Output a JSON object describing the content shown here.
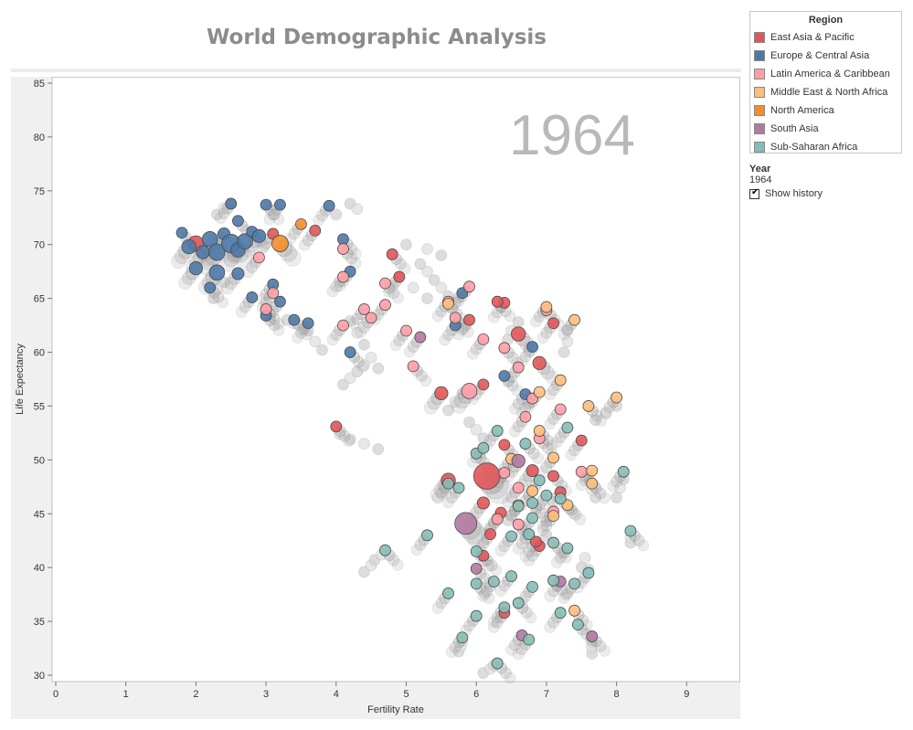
{
  "page": {
    "title": "World Demographic Analysis",
    "year_label": "Year",
    "year_value": "1964",
    "show_history_label": "Show history",
    "show_history_checked": true
  },
  "legend": {
    "title": "Region",
    "items": [
      {
        "label": "East Asia & Pacific",
        "color": "#e15759"
      },
      {
        "label": "Europe & Central Asia",
        "color": "#4e79a7"
      },
      {
        "label": "Latin America & Caribbean",
        "color": "#ff9da7"
      },
      {
        "label": "Middle East & North Africa",
        "color": "#ffbe7d"
      },
      {
        "label": "North America",
        "color": "#f28e2b"
      },
      {
        "label": "South Asia",
        "color": "#b07aa1"
      },
      {
        "label": "Sub-Saharan Africa",
        "color": "#86bcb6"
      }
    ]
  },
  "chart_data": {
    "type": "scatter",
    "title": "World Demographic Analysis",
    "xlabel": "Fertility Rate",
    "ylabel": "Life Expectancy",
    "xlim": [
      0,
      10
    ],
    "ylim": [
      30,
      85
    ],
    "xticks": [
      0,
      1,
      2,
      3,
      4,
      5,
      6,
      7,
      8,
      9
    ],
    "yticks": [
      30,
      35,
      40,
      45,
      50,
      55,
      60,
      65,
      70,
      75,
      80,
      85
    ],
    "year_watermark": "1964",
    "history_shown": true,
    "grid": false,
    "legend_placement": "right",
    "series": [
      {
        "name": "East Asia & Pacific",
        "color": "#e15759",
        "points": [
          [
            2.0,
            70.1,
            1.4
          ],
          [
            3.1,
            71.0,
            1.0
          ],
          [
            3.7,
            71.3,
            1.0
          ],
          [
            4.8,
            69.1,
            1.0
          ],
          [
            4.9,
            67.0,
            1.0
          ],
          [
            5.6,
            48.1,
            1.3
          ],
          [
            6.15,
            48.5,
            2.4
          ],
          [
            6.1,
            46.0,
            1.1
          ],
          [
            6.35,
            45.1,
            1.0
          ],
          [
            6.4,
            51.4,
            1.0
          ],
          [
            5.9,
            63.0,
            1.0
          ],
          [
            6.4,
            64.6,
            1.0
          ],
          [
            6.6,
            61.7,
            1.3
          ],
          [
            5.5,
            56.2,
            1.2
          ],
          [
            6.1,
            57.0,
            1.0
          ],
          [
            6.9,
            59.0,
            1.2
          ],
          [
            7.1,
            62.7,
            1.0
          ],
          [
            6.8,
            49.0,
            1.1
          ],
          [
            7.1,
            48.5,
            1.0
          ],
          [
            7.5,
            51.8,
            1.0
          ],
          [
            6.2,
            43.1,
            1.0
          ],
          [
            6.1,
            41.1,
            1.0
          ],
          [
            6.4,
            35.8,
            1.0
          ],
          [
            6.9,
            42.0,
            1.0
          ],
          [
            4.0,
            53.1,
            1.0
          ],
          [
            7.2,
            47.0,
            1.0
          ],
          [
            6.85,
            42.4,
            1.0
          ],
          [
            6.3,
            64.7,
            1.0
          ]
        ]
      },
      {
        "name": "Europe & Central Asia",
        "color": "#4e79a7",
        "points": [
          [
            1.8,
            71.1,
            1.0
          ],
          [
            1.9,
            69.8,
            1.3
          ],
          [
            2.1,
            69.3,
            1.2
          ],
          [
            2.2,
            70.5,
            1.4
          ],
          [
            2.3,
            69.3,
            1.5
          ],
          [
            2.4,
            71.0,
            1.1
          ],
          [
            2.5,
            70.1,
            1.7
          ],
          [
            2.6,
            69.5,
            1.3
          ],
          [
            2.7,
            70.3,
            1.4
          ],
          [
            2.8,
            71.2,
            1.0
          ],
          [
            2.9,
            70.8,
            1.2
          ],
          [
            3.2,
            73.7,
            1.0
          ],
          [
            3.0,
            73.7,
            1.0
          ],
          [
            2.5,
            73.8,
            1.0
          ],
          [
            3.9,
            73.6,
            1.0
          ],
          [
            4.1,
            70.5,
            1.0
          ],
          [
            2.0,
            67.8,
            1.2
          ],
          [
            2.3,
            67.4,
            1.4
          ],
          [
            2.2,
            66.0,
            1.0
          ],
          [
            2.6,
            67.3,
            1.1
          ],
          [
            2.8,
            65.1,
            1.0
          ],
          [
            3.0,
            63.4,
            1.0
          ],
          [
            3.1,
            66.3,
            1.0
          ],
          [
            3.2,
            64.7,
            1.0
          ],
          [
            3.4,
            63.0,
            1.0
          ],
          [
            3.6,
            62.7,
            1.0
          ],
          [
            4.2,
            67.5,
            1.0
          ],
          [
            4.2,
            60.0,
            1.0
          ],
          [
            5.7,
            62.5,
            1.0
          ],
          [
            5.8,
            65.5,
            1.0
          ],
          [
            6.4,
            57.8,
            1.0
          ],
          [
            6.7,
            56.1,
            1.0
          ],
          [
            6.8,
            60.5,
            1.0
          ],
          [
            2.6,
            72.2,
            1.0
          ]
        ]
      },
      {
        "name": "Latin America & Caribbean",
        "color": "#ff9da7",
        "points": [
          [
            4.1,
            69.6,
            1.0
          ],
          [
            4.1,
            67.0,
            1.0
          ],
          [
            3.1,
            65.5,
            1.0
          ],
          [
            3.0,
            64.0,
            1.0
          ],
          [
            4.4,
            64.0,
            1.0
          ],
          [
            4.5,
            63.2,
            1.0
          ],
          [
            4.7,
            66.4,
            1.0
          ],
          [
            4.7,
            64.4,
            1.0
          ],
          [
            4.1,
            62.5,
            1.0
          ],
          [
            5.1,
            58.7,
            1.0
          ],
          [
            5.9,
            56.4,
            1.4
          ],
          [
            5.6,
            64.7,
            1.0
          ],
          [
            5.7,
            63.2,
            1.0
          ],
          [
            5.9,
            66.1,
            1.0
          ],
          [
            6.1,
            61.2,
            1.0
          ],
          [
            6.4,
            60.4,
            1.0
          ],
          [
            6.6,
            58.6,
            1.0
          ],
          [
            6.8,
            55.7,
            1.0
          ],
          [
            7.0,
            63.9,
            1.0
          ],
          [
            7.2,
            54.7,
            1.0
          ],
          [
            6.7,
            54.0,
            1.0
          ],
          [
            6.9,
            52.0,
            1.0
          ],
          [
            6.4,
            48.8,
            1.0
          ],
          [
            6.6,
            47.4,
            1.0
          ],
          [
            6.6,
            44.0,
            1.0
          ],
          [
            6.3,
            44.5,
            1.0
          ],
          [
            7.1,
            45.2,
            1.0
          ],
          [
            7.5,
            48.9,
            1.0
          ],
          [
            2.9,
            68.8,
            1.0
          ],
          [
            5.0,
            62.0,
            1.0
          ]
        ]
      },
      {
        "name": "Middle East & North Africa",
        "color": "#ffbe7d",
        "points": [
          [
            5.6,
            64.5,
            1.0
          ],
          [
            7.0,
            64.2,
            1.0
          ],
          [
            7.4,
            63.0,
            1.0
          ],
          [
            7.6,
            55.0,
            1.0
          ],
          [
            8.0,
            55.8,
            1.0
          ],
          [
            7.2,
            57.4,
            1.0
          ],
          [
            6.9,
            52.7,
            1.0
          ],
          [
            6.8,
            47.1,
            1.0
          ],
          [
            7.1,
            44.8,
            1.0
          ],
          [
            7.3,
            45.8,
            1.0
          ],
          [
            7.1,
            50.2,
            1.0
          ],
          [
            7.65,
            49.0,
            1.0
          ],
          [
            7.65,
            47.8,
            1.0
          ],
          [
            6.5,
            50.1,
            1.0
          ],
          [
            6.6,
            45.8,
            1.0
          ],
          [
            7.4,
            36.0,
            1.0
          ],
          [
            6.9,
            56.3,
            1.0
          ]
        ]
      },
      {
        "name": "North America",
        "color": "#f28e2b",
        "points": [
          [
            3.2,
            70.1,
            1.5
          ],
          [
            3.5,
            71.9,
            1.0
          ]
        ]
      },
      {
        "name": "South Asia",
        "color": "#b07aa1",
        "points": [
          [
            5.85,
            44.1,
            2.0
          ],
          [
            6.6,
            49.9,
            1.2
          ],
          [
            5.2,
            61.4,
            1.0
          ],
          [
            6.0,
            39.9,
            1.0
          ],
          [
            7.2,
            38.7,
            1.0
          ],
          [
            6.65,
            33.7,
            1.0
          ],
          [
            7.65,
            33.6,
            1.0
          ]
        ]
      },
      {
        "name": "Sub-Saharan Africa",
        "color": "#86bcb6",
        "points": [
          [
            4.7,
            41.6,
            1.0
          ],
          [
            5.3,
            43.0,
            1.0
          ],
          [
            5.75,
            47.4,
            1.0
          ],
          [
            6.0,
            50.6,
            1.0
          ],
          [
            6.1,
            51.1,
            1.0
          ],
          [
            6.3,
            52.7,
            1.0
          ],
          [
            6.7,
            51.5,
            1.0
          ],
          [
            6.9,
            48.1,
            1.0
          ],
          [
            6.6,
            45.7,
            1.0
          ],
          [
            6.8,
            46.0,
            1.0
          ],
          [
            6.8,
            44.6,
            1.0
          ],
          [
            7.0,
            46.7,
            1.0
          ],
          [
            7.2,
            46.4,
            1.0
          ],
          [
            7.3,
            53.0,
            1.0
          ],
          [
            8.1,
            48.9,
            1.0
          ],
          [
            8.2,
            43.4,
            1.0
          ],
          [
            7.6,
            39.5,
            1.0
          ],
          [
            7.3,
            41.8,
            1.0
          ],
          [
            7.1,
            42.3,
            1.0
          ],
          [
            6.75,
            43.1,
            1.0
          ],
          [
            6.5,
            42.9,
            1.0
          ],
          [
            6.0,
            38.5,
            1.0
          ],
          [
            6.25,
            38.7,
            1.0
          ],
          [
            6.5,
            39.2,
            1.0
          ],
          [
            7.1,
            38.8,
            1.0
          ],
          [
            7.4,
            38.5,
            1.0
          ],
          [
            6.4,
            36.3,
            1.0
          ],
          [
            6.6,
            36.7,
            1.0
          ],
          [
            6.8,
            38.2,
            1.0
          ],
          [
            7.2,
            35.8,
            1.0
          ],
          [
            7.45,
            34.7,
            1.0
          ],
          [
            6.75,
            33.3,
            1.0
          ],
          [
            5.8,
            33.5,
            1.0
          ],
          [
            6.3,
            31.1,
            1.0
          ],
          [
            6.0,
            35.5,
            1.0
          ],
          [
            5.6,
            37.6,
            1.0
          ],
          [
            6.0,
            41.5,
            1.0
          ],
          [
            5.6,
            47.8,
            1.0
          ]
        ]
      }
    ],
    "history_trails": [
      [
        [
          4.6,
          51.0
        ],
        [
          4.4,
          51.5
        ],
        [
          4.2,
          51.9
        ],
        [
          4.05,
          52.4
        ]
      ],
      [
        [
          4.4,
          39.6
        ],
        [
          4.5,
          40.2
        ],
        [
          4.55,
          40.7
        ],
        [
          4.65,
          41.2
        ]
      ],
      [
        [
          5.75,
          32.2
        ],
        [
          5.78,
          32.7
        ],
        [
          5.8,
          33.2
        ]
      ],
      [
        [
          6.1,
          30.2
        ],
        [
          6.2,
          30.6
        ],
        [
          6.25,
          30.9
        ]
      ],
      [
        [
          8.0,
          46.5
        ],
        [
          8.05,
          47.4
        ],
        [
          8.1,
          48.2
        ]
      ],
      [
        [
          8.2,
          42.3
        ],
        [
          8.2,
          42.8
        ]
      ],
      [
        [
          7.7,
          46.5
        ],
        [
          7.65,
          47.2
        ]
      ],
      [
        [
          7.0,
          43.0
        ],
        [
          6.95,
          42.5
        ]
      ],
      [
        [
          7.65,
          32.0
        ],
        [
          7.65,
          32.6
        ],
        [
          7.65,
          33.1
        ]
      ],
      [
        [
          7.5,
          40.0
        ],
        [
          7.55,
          40.9
        ],
        [
          7.6,
          39.8
        ]
      ],
      [
        [
          8.0,
          55.0
        ],
        [
          7.85,
          54.3
        ],
        [
          7.7,
          53.7
        ]
      ],
      [
        [
          4.6,
          58.5
        ],
        [
          4.5,
          59.5
        ],
        [
          4.4,
          60.7
        ],
        [
          4.3,
          61.8
        ],
        [
          4.2,
          62.9
        ]
      ],
      [
        [
          5.3,
          65.0
        ],
        [
          5.1,
          66.0
        ],
        [
          4.9,
          67.0
        ]
      ],
      [
        [
          5.6,
          65.2
        ],
        [
          5.5,
          66.0
        ],
        [
          5.4,
          66.7
        ],
        [
          5.3,
          67.5
        ],
        [
          5.2,
          68.2
        ]
      ],
      [
        [
          3.3,
          63.0
        ],
        [
          3.4,
          62.7
        ],
        [
          3.6,
          62.0
        ],
        [
          3.7,
          61.0
        ],
        [
          3.8,
          60.2
        ]
      ],
      [
        [
          4.1,
          57.0
        ],
        [
          4.2,
          57.6
        ],
        [
          4.3,
          58.2
        ],
        [
          4.4,
          58.8
        ]
      ],
      [
        [
          5.9,
          53.5
        ],
        [
          6.0,
          52.8
        ],
        [
          6.1,
          52.0
        ]
      ],
      [
        [
          5.0,
          70.0
        ],
        [
          5.3,
          69.6
        ],
        [
          5.5,
          69.0
        ]
      ],
      [
        [
          4.2,
          73.8
        ],
        [
          4.3,
          73.3
        ],
        [
          4.0,
          72.8
        ]
      ],
      [
        [
          2.3,
          72.8
        ],
        [
          2.4,
          73.4
        ],
        [
          2.5,
          73.8
        ]
      ],
      [
        [
          2.4,
          66.5
        ],
        [
          2.3,
          65.8
        ],
        [
          2.25,
          65.0
        ]
      ],
      [
        [
          6.6,
          62.8
        ],
        [
          6.5,
          62.0
        ],
        [
          6.45,
          61.2
        ]
      ],
      [
        [
          7.3,
          62.0
        ],
        [
          7.3,
          61.0
        ],
        [
          7.25,
          60.0
        ]
      ],
      [
        [
          5.8,
          56.2
        ],
        [
          5.7,
          55.4
        ],
        [
          5.6,
          54.6
        ]
      ]
    ]
  }
}
